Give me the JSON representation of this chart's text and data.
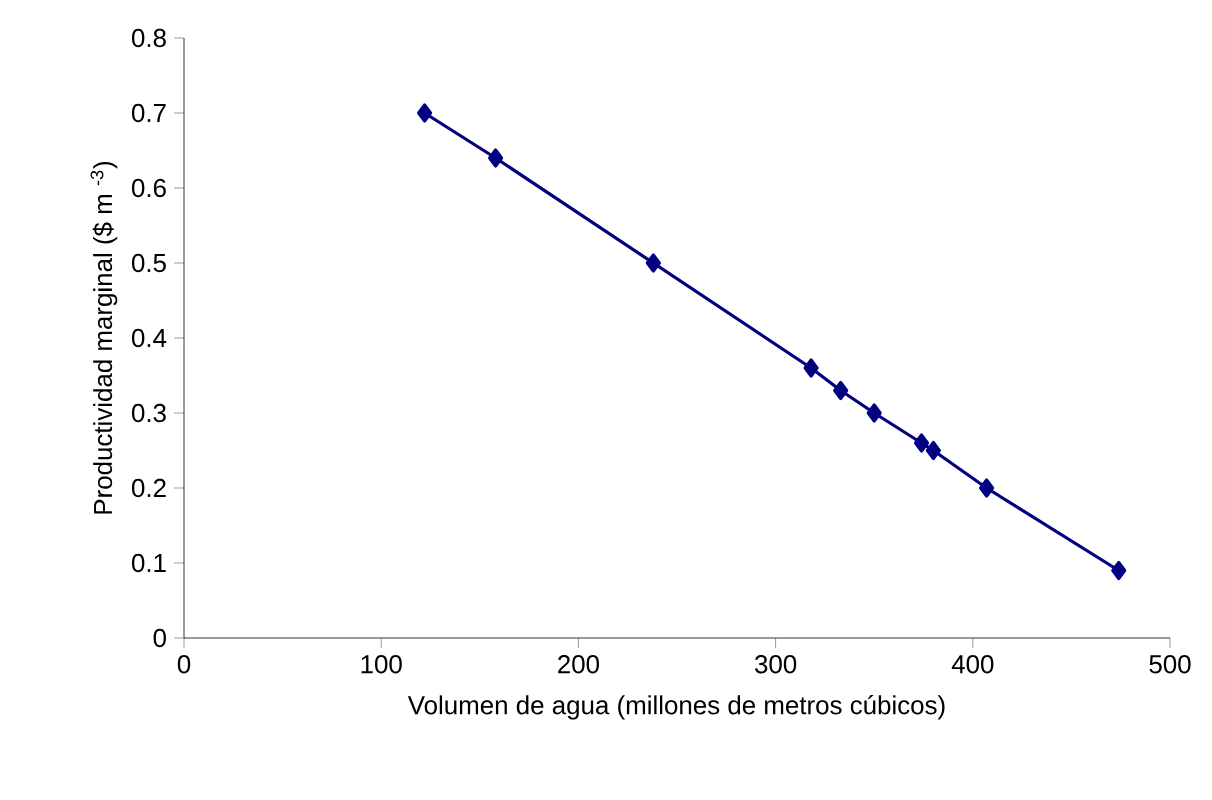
{
  "chart_data": {
    "type": "line",
    "xlabel": "Volumen de agua (millones de metros cúbicos)",
    "ylabel": "Productividad marginal ($ m $^{-3}$)",
    "x": [
      122,
      158,
      238,
      318,
      333,
      350,
      374,
      380,
      407,
      474
    ],
    "series": [
      {
        "color": "#000080",
        "values": [
          0.7,
          0.64,
          0.5,
          0.36,
          0.33,
          0.3,
          0.26,
          0.25,
          0.2,
          0.09
        ]
      }
    ],
    "xlim": [
      0,
      500
    ],
    "xticks": [
      0,
      100,
      200,
      300,
      400,
      500
    ],
    "ylim": [
      0,
      0.8
    ],
    "yticks": [
      0,
      0.1,
      0.2,
      0.3,
      0.4,
      0.5,
      0.6,
      0.7,
      0.8
    ],
    "marker": "diamond",
    "line_style": "solid",
    "grid": false
  }
}
